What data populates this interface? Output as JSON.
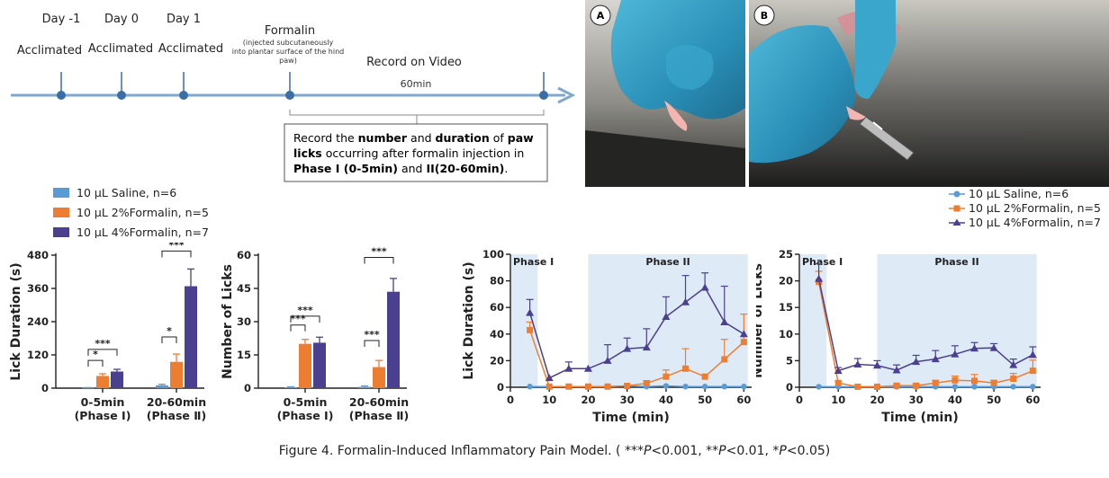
{
  "timeline": {
    "days": [
      "Day -1",
      "Day 0",
      "Day 1"
    ],
    "acclimated": [
      "Acclimated",
      "Acclimated",
      "Acclimated"
    ],
    "formalin_title": "Formalin",
    "formalin_note_1": "(injected subcutaneously",
    "formalin_note_2": "into plantar surface of the hind",
    "formalin_note_3": "paw)",
    "record_on_video": "Record on Video",
    "duration": "60min",
    "box_lines": [
      [
        {
          "t": "Record the ",
          "b": false
        },
        {
          "t": "number",
          "b": true
        },
        {
          "t": " and ",
          "b": false
        },
        {
          "t": "duration",
          "b": true
        },
        {
          "t": " of ",
          "b": false
        },
        {
          "t": "paw",
          "b": true
        }
      ],
      [
        {
          "t": "licks",
          "b": true
        },
        {
          "t": " occurring after formalin injection in",
          "b": false
        }
      ],
      [
        {
          "t": "Phase I (0-5min)",
          "b": true
        },
        {
          "t": " and ",
          "b": false
        },
        {
          "t": "II(20-60min)",
          "b": true
        },
        {
          "t": ".",
          "b": false
        }
      ]
    ]
  },
  "photos": {
    "label_a": "A",
    "label_b": "B"
  },
  "colors": {
    "saline": "#5b9bd5",
    "f2": "#ed7d31",
    "f4": "#4b3f8f",
    "phase_bg": "#deebf7",
    "timeline": "#7fa8cf"
  },
  "legend_bar": [
    "10 μL Saline, n=6",
    "10 μL 2%Formalin, n=5",
    "10 μL 4%Formalin, n=7"
  ],
  "legend_line": [
    "10 μL Saline, n=6",
    "10 μL 2%Formalin, n=5",
    "10 μL 4%Formalin, n=7"
  ],
  "caption": {
    "prefix": "Figure 4. Formalin-Induced Inflammatory Pain Model. ( ***",
    "p1": "P",
    "mid1": "<0.001, **",
    "p2": "P",
    "mid2": "<0.01, *",
    "p3": "P",
    "suffix": "<0.05)"
  },
  "chart_data": [
    {
      "type": "bar",
      "ylabel": "Lick Duration (s)",
      "ylim": [
        0,
        480
      ],
      "yticks": [
        "0",
        "120",
        "240",
        "360",
        "480"
      ],
      "categories": [
        "0-5min (Phase Ⅰ)",
        "20-60min (Phase Ⅱ)"
      ],
      "category_lines": [
        [
          "0-5min",
          "(Phase Ⅰ)"
        ],
        [
          "20-60min",
          "(Phase Ⅱ)"
        ]
      ],
      "series": [
        {
          "name": "10 μL Saline, n=6",
          "values": [
            1,
            10
          ],
          "errors": [
            1,
            4
          ]
        },
        {
          "name": "10 μL 2%Formalin, n=5",
          "values": [
            44,
            95
          ],
          "errors": [
            8,
            28
          ]
        },
        {
          "name": "10 μL 4%Formalin, n=7",
          "values": [
            60,
            368
          ],
          "errors": [
            8,
            62
          ]
        }
      ],
      "significance": [
        {
          "cat": 0,
          "from": 0,
          "to": 1,
          "label": "*",
          "y": 100
        },
        {
          "cat": 0,
          "from": 0,
          "to": 2,
          "label": "***",
          "y": 140
        },
        {
          "cat": 1,
          "from": 0,
          "to": 1,
          "label": "*",
          "y": 185
        },
        {
          "cat": 1,
          "from": 0,
          "to": 2,
          "label": "***",
          "y": 495
        }
      ]
    },
    {
      "type": "bar",
      "ylabel": "Number of Licks",
      "ylim": [
        0,
        60
      ],
      "yticks": [
        "0",
        "15",
        "30",
        "45",
        "60"
      ],
      "categories": [
        "0-5min (Phase Ⅰ)",
        "20-60min (Phase Ⅱ)"
      ],
      "category_lines": [
        [
          "0-5min",
          "(Phase Ⅰ)"
        ],
        [
          "20-60min",
          "(Phase Ⅱ)"
        ]
      ],
      "series": [
        {
          "name": "10 μL Saline, n=6",
          "values": [
            0.3,
            0.6
          ],
          "errors": [
            0.3,
            0.4
          ]
        },
        {
          "name": "10 μL 2%Formalin, n=5",
          "values": [
            20,
            9.5
          ],
          "errors": [
            2,
            3
          ]
        },
        {
          "name": "10 μL 4%Formalin, n=7",
          "values": [
            20.5,
            43.5
          ],
          "errors": [
            2.5,
            6
          ]
        }
      ],
      "significance": [
        {
          "cat": 0,
          "from": 0,
          "to": 1,
          "label": "***",
          "y": 28.5
        },
        {
          "cat": 0,
          "from": 0,
          "to": 2,
          "label": "***",
          "y": 32.5
        },
        {
          "cat": 1,
          "from": 0,
          "to": 1,
          "label": "***",
          "y": 21.5
        },
        {
          "cat": 1,
          "from": 0,
          "to": 2,
          "label": "***",
          "y": 59
        }
      ]
    },
    {
      "type": "line",
      "ylabel": "Lick Duration (s)",
      "xlabel": "Time (min)",
      "xlim": [
        0,
        62
      ],
      "ylim": [
        0,
        100
      ],
      "xticks": [
        "0",
        "10",
        "20",
        "30",
        "40",
        "50",
        "60"
      ],
      "yticks": [
        "0",
        "20",
        "40",
        "60",
        "80",
        "100"
      ],
      "phase_labels": [
        "Phase I",
        "Phase II"
      ],
      "phases": [
        [
          0,
          7
        ],
        [
          20,
          61
        ]
      ],
      "x": [
        5,
        10,
        15,
        20,
        25,
        30,
        35,
        40,
        45,
        50,
        55,
        60
      ],
      "series": [
        {
          "name": "10 μL Saline, n=6",
          "marker": "circle",
          "values": [
            0.5,
            0.5,
            0.5,
            0.5,
            0.5,
            1,
            0.5,
            1,
            0.5,
            0.5,
            0.5,
            0.5
          ],
          "errors": [
            0,
            0,
            0,
            0,
            0,
            0,
            0,
            0,
            0,
            0,
            0,
            0
          ]
        },
        {
          "name": "10 μL 2%Formalin, n=5",
          "marker": "square",
          "values": [
            43,
            0.5,
            0.5,
            0.5,
            0.5,
            1,
            3,
            8,
            14,
            8,
            21,
            34
          ],
          "errors": [
            6,
            0,
            0,
            0,
            0,
            0,
            2,
            5,
            15,
            0,
            15,
            21
          ]
        },
        {
          "name": "10 μL 4%Formalin, n=7",
          "marker": "triangle",
          "values": [
            56,
            7,
            14,
            14,
            20,
            29,
            30,
            53,
            64,
            75,
            49,
            40
          ],
          "errors": [
            10,
            0,
            5,
            0,
            12,
            8,
            14,
            15,
            20,
            11,
            27,
            0
          ]
        }
      ]
    },
    {
      "type": "line",
      "ylabel": "Number of Licks",
      "xlabel": "Time (min)",
      "xlim": [
        0,
        62
      ],
      "ylim": [
        0,
        25
      ],
      "xticks": [
        "0",
        "10",
        "20",
        "30",
        "40",
        "50",
        "60"
      ],
      "yticks": [
        "0",
        "5",
        "10",
        "15",
        "20",
        "25"
      ],
      "phase_labels": [
        "Phase I",
        "Phase II"
      ],
      "phases": [
        [
          0,
          7
        ],
        [
          20,
          61
        ]
      ],
      "x": [
        5,
        10,
        15,
        20,
        25,
        30,
        35,
        40,
        45,
        50,
        55,
        60
      ],
      "series": [
        {
          "name": "10 μL Saline, n=6",
          "marker": "circle",
          "values": [
            0.1,
            0.1,
            0.1,
            0.1,
            0.1,
            0.1,
            0.1,
            0.1,
            0.1,
            0.1,
            0.1,
            0.1
          ],
          "errors": [
            0,
            0,
            0,
            0,
            0,
            0,
            0,
            0,
            0,
            0,
            0,
            0
          ]
        },
        {
          "name": "10 μL 2%Formalin, n=5",
          "marker": "square",
          "values": [
            19.8,
            0.8,
            0.1,
            0.1,
            0.3,
            0.3,
            0.8,
            1.3,
            1.2,
            0.8,
            1.6,
            3.1
          ],
          "errors": [
            2,
            0.4,
            0,
            0,
            0.2,
            0.3,
            0.5,
            0.8,
            1.2,
            0.5,
            1,
            2
          ]
        },
        {
          "name": "10 μL 4%Formalin, n=7",
          "marker": "triangle",
          "values": [
            20.4,
            3.1,
            4.3,
            4.1,
            3.2,
            4.8,
            5.3,
            6.2,
            7.3,
            7.4,
            4.2,
            6.1
          ],
          "errors": [
            2.8,
            0.6,
            1.1,
            0.9,
            1,
            1.2,
            1.6,
            1.6,
            1.1,
            0.8,
            1.1,
            1.5
          ]
        }
      ]
    }
  ]
}
